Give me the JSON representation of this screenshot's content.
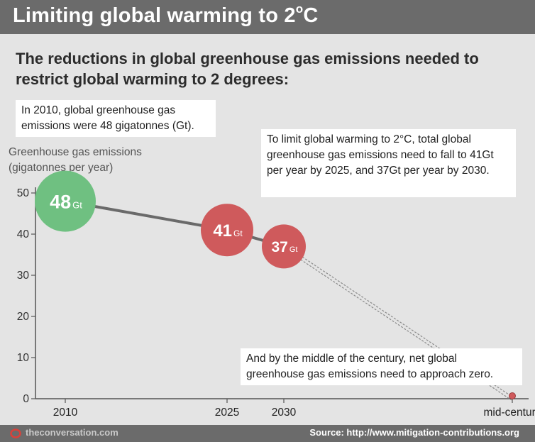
{
  "header": {
    "title_text": "Limiting global warming to 2",
    "title_sup": "o",
    "title_unit": "C"
  },
  "subtitle": "The reductions in global greenhouse gas emissions needed to restrict global warming to 2 degrees:",
  "notes": {
    "n2010": "In 2010, global greenhouse gas emissions were 48 gigatonnes (Gt).",
    "target": "To limit global warming to 2°C, total global greenhouse gas emissions need to fall to 41Gt per year by 2025, and 37Gt per year by 2030.",
    "midcentury": "And by the middle of the century, net global greenhouse gas emissions need to approach zero."
  },
  "y_axis_label": [
    "Greenhouse gas emissions",
    "(gigatonnes per year)"
  ],
  "footer": {
    "site": "theconversation.com",
    "source": "Source: http://www.mitigation-contributions.org"
  },
  "colors": {
    "green": "#6fc081",
    "red": "#cf5a5c",
    "line": "#6a6a6a",
    "axis": "#555555"
  },
  "chart_data": {
    "type": "line",
    "title": "The reductions in global greenhouse gas emissions needed to restrict global warming to 2 degrees:",
    "ylabel": "Greenhouse gas emissions (gigatonnes per year)",
    "xlabel": "",
    "categories": [
      "2010",
      "2025",
      "2030",
      "mid-century"
    ],
    "x": [
      2010,
      2025,
      2030,
      2050
    ],
    "values": [
      48,
      41,
      37,
      0
    ],
    "yticks": [
      0,
      10,
      20,
      30,
      40,
      50
    ],
    "ylim": [
      0,
      50
    ],
    "point_labels": [
      {
        "num": "48",
        "unit": "Gt"
      },
      {
        "num": "41",
        "unit": "Gt"
      },
      {
        "num": "37",
        "unit": "Gt"
      }
    ],
    "solid_segment": [
      0,
      2
    ],
    "dashed_segment": [
      2,
      3
    ]
  }
}
